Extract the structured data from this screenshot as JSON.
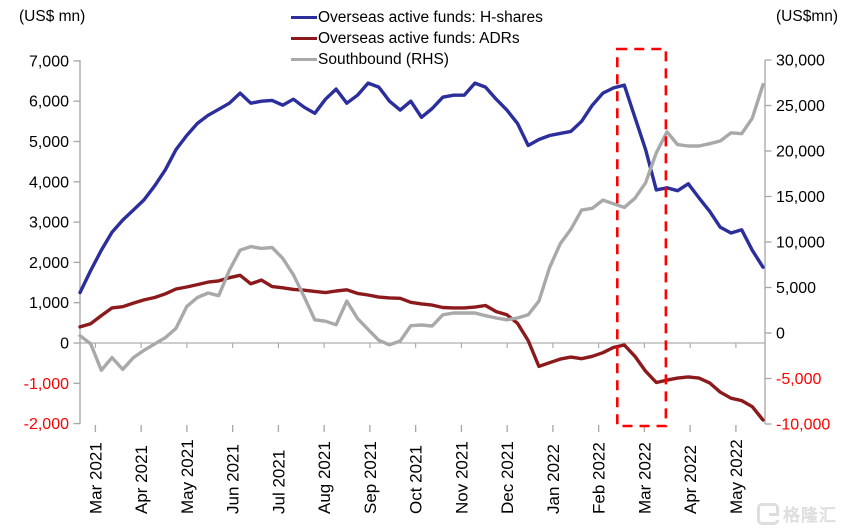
{
  "page": {
    "background": "#FFFFFF"
  },
  "left_axis_title": "(US$ mn)",
  "right_axis_title": "(US$mn)",
  "legend": {
    "items": [
      {
        "label": "Overseas active funds: H-shares",
        "color": "#2B2E9B"
      },
      {
        "label": "Overseas active funds: ADRs",
        "color": "#8C1A1C"
      },
      {
        "label": "Southbound (RHS)",
        "color": "#A9A9A9"
      }
    ]
  },
  "watermark": {
    "text": "格隆汇"
  },
  "chart_data": {
    "type": "line",
    "frequency": "weekly",
    "x_tick_labels": [
      "Mar 2021",
      "Apr 2021",
      "May 2021",
      "Jun 2021",
      "Jul 2021",
      "Aug 2021",
      "Sep 2021",
      "Oct 2021",
      "Nov 2021",
      "Dec 2021",
      "Jan 2022",
      "Feb 2022",
      "Mar 2022",
      "Apr 2022",
      "May 2022"
    ],
    "left_axis": {
      "title": "(US$ mn)",
      "min": -2000,
      "max": 7000,
      "ticks": [
        "7,000",
        "6,000",
        "5,000",
        "4,000",
        "3,000",
        "2,000",
        "1,000",
        "0",
        "-1,000",
        "-2,000"
      ],
      "negative_tick_color": "#FF0000"
    },
    "right_axis": {
      "title": "(US$mn)",
      "min": -10000,
      "max": 30000,
      "ticks": [
        "30,000",
        "25,000",
        "20,000",
        "15,000",
        "10,000",
        "5,000",
        "0",
        "-5,000",
        "-10,000"
      ],
      "negative_tick_color": "#FF0000"
    },
    "series": [
      {
        "name": "Overseas active funds: H-shares",
        "axis": "left",
        "color": "#2B2E9B",
        "values": [
          1250,
          1800,
          2300,
          2750,
          3050,
          3300,
          3550,
          3900,
          4300,
          4800,
          5150,
          5450,
          5650,
          5800,
          5950,
          6200,
          5950,
          6000,
          6020,
          5900,
          6050,
          5850,
          5700,
          6050,
          6300,
          5950,
          6150,
          6450,
          6350,
          6000,
          5780,
          6000,
          5600,
          5820,
          6100,
          6150,
          6150,
          6450,
          6350,
          6050,
          5780,
          5450,
          4900,
          5050,
          5150,
          5200,
          5250,
          5500,
          5900,
          6200,
          6330,
          6400,
          5600,
          4800,
          3800,
          3850,
          3780,
          3950,
          3600,
          3270,
          2870,
          2730,
          2810,
          2300,
          1880
        ]
      },
      {
        "name": "Overseas active funds: ADRs",
        "axis": "left",
        "color": "#8C1A1C",
        "values": [
          400,
          480,
          680,
          870,
          900,
          990,
          1070,
          1130,
          1220,
          1340,
          1390,
          1450,
          1510,
          1540,
          1620,
          1680,
          1470,
          1560,
          1400,
          1370,
          1330,
          1310,
          1280,
          1250,
          1290,
          1320,
          1230,
          1190,
          1140,
          1120,
          1110,
          1010,
          970,
          940,
          880,
          870,
          870,
          890,
          930,
          780,
          700,
          490,
          60,
          -580,
          -490,
          -400,
          -350,
          -390,
          -330,
          -240,
          -110,
          -50,
          -330,
          -700,
          -980,
          -920,
          -870,
          -840,
          -870,
          -990,
          -1220,
          -1370,
          -1430,
          -1580,
          -1910
        ]
      },
      {
        "name": "Southbound (RHS)",
        "axis": "right",
        "color": "#A9A9A9",
        "values": [
          -300,
          -1200,
          -4100,
          -2700,
          -4000,
          -2700,
          -1900,
          -1200,
          -500,
          500,
          2900,
          3900,
          4400,
          4100,
          6900,
          9100,
          9500,
          9300,
          9400,
          8200,
          6400,
          4000,
          1450,
          1300,
          900,
          3500,
          1600,
          400,
          -800,
          -1300,
          -880,
          800,
          880,
          770,
          2000,
          2200,
          2200,
          2200,
          1900,
          1650,
          1450,
          1650,
          2000,
          3500,
          7200,
          9800,
          11400,
          13500,
          13700,
          14600,
          14200,
          13800,
          14800,
          16500,
          19800,
          22100,
          20700,
          20550,
          20550,
          20800,
          21100,
          22000,
          21900,
          23600,
          27300
        ]
      }
    ],
    "highlight_box": {
      "color": "#FF0000",
      "style": "dashed",
      "start_index": 50.35,
      "end_index": 54.9
    }
  }
}
